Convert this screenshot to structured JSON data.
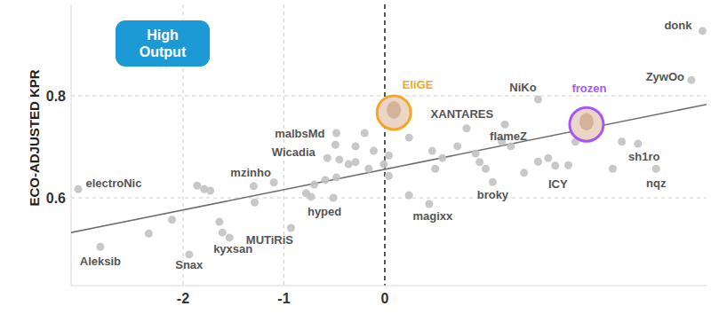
{
  "chart_data": {
    "type": "scatter",
    "ylabel": "ECO-ADJUSTED KPR",
    "annotation": "High Output",
    "marker": "circle",
    "grid": true,
    "xlim": [
      -3.11,
      3.19
    ],
    "ylim": [
      0.428,
      0.979
    ],
    "xticks": [
      -2,
      -1,
      0
    ],
    "yticks": [
      0.6,
      0.8
    ],
    "color": "#c2c2c2",
    "x": [
      0.09,
      2.0,
      3.15,
      3.04,
      1.52,
      0.81,
      1.19,
      2.51,
      2.69,
      1.69,
      1.07,
      0.44,
      -0.73,
      -0.93,
      -1.54,
      -1.94,
      -2.82,
      -3.04,
      -1.1,
      -0.57,
      -0.49,
      -1.86,
      -1.79,
      -1.73,
      -2.11,
      -2.34,
      -1.64,
      -1.61,
      -1.29,
      -1.3,
      -0.78,
      -0.7,
      -0.59,
      -0.51,
      -0.48,
      -0.45,
      -0.36,
      -0.29,
      -0.2,
      -0.48,
      -0.29,
      -0.11,
      -0.16,
      -0.01,
      0.04,
      0.04,
      0.24,
      0.47,
      0.5,
      0.57,
      0.72,
      0.9,
      0.94,
      1.0,
      1.16,
      1.25,
      1.38,
      1.52,
      1.62,
      1.82,
      1.89,
      2.09,
      2.26,
      0.24,
      2.35
    ],
    "values": [
      0.767,
      0.744,
      0.927,
      0.831,
      0.793,
      0.736,
      0.744,
      0.706,
      0.657,
      0.663,
      0.631,
      0.588,
      0.602,
      0.541,
      0.522,
      0.489,
      0.504,
      0.617,
      0.63,
      0.678,
      0.704,
      0.624,
      0.617,
      0.614,
      0.557,
      0.53,
      0.553,
      0.532,
      0.591,
      0.623,
      0.609,
      0.626,
      0.635,
      0.6,
      0.64,
      0.675,
      0.666,
      0.67,
      0.727,
      0.727,
      0.701,
      0.692,
      0.657,
      0.666,
      0.683,
      0.643,
      0.605,
      0.692,
      0.657,
      0.678,
      0.701,
      0.687,
      0.67,
      0.657,
      0.71,
      0.701,
      0.649,
      0.671,
      0.678,
      0.664,
      0.71,
      0.727,
      0.657,
      0.718,
      0.71
    ],
    "point_labels": [
      "EliGE",
      "frozen",
      "donk",
      "ZywOo",
      "NiKo",
      "XANTARES",
      "flameZ",
      "sh1ro",
      "nqz",
      "ICY",
      "broky",
      "magixx",
      "hyped",
      "MUTiRiS",
      "kyxsan",
      "Snax",
      "Aleksib",
      "electroNic",
      "mzinho",
      "Wicadia",
      "malbsMd",
      null,
      null,
      null,
      null,
      null,
      null,
      null,
      null,
      null,
      null,
      null,
      null,
      null,
      null,
      null,
      null,
      null,
      null,
      null,
      null,
      null,
      null,
      null,
      null,
      null,
      null,
      null,
      null,
      null,
      null,
      null,
      null,
      null,
      null,
      null,
      null,
      null,
      null,
      null,
      null,
      null,
      null,
      null,
      null
    ],
    "colors": [
      "#f5a623",
      "#a855f7",
      "#c2c2c2",
      "#c2c2c2",
      "#c2c2c2",
      "#c2c2c2",
      "#c2c2c2",
      "#c2c2c2",
      "#c2c2c2",
      "#c2c2c2",
      "#c2c2c2",
      "#c2c2c2",
      "#c2c2c2",
      "#c2c2c2",
      "#c2c2c2",
      "#c2c2c2",
      "#c2c2c2",
      "#c2c2c2",
      "#c2c2c2",
      "#c2c2c2",
      "#c2c2c2",
      "#c2c2c2",
      "#c2c2c2",
      "#c2c2c2",
      "#c2c2c2",
      "#c2c2c2",
      "#c2c2c2",
      "#c2c2c2",
      "#c2c2c2",
      "#c2c2c2",
      "#c2c2c2",
      "#c2c2c2",
      "#c2c2c2",
      "#c2c2c2",
      "#c2c2c2",
      "#c2c2c2",
      "#c2c2c2",
      "#c2c2c2",
      "#c2c2c2",
      "#c2c2c2",
      "#c2c2c2",
      "#c2c2c2",
      "#c2c2c2",
      "#c2c2c2",
      "#c2c2c2",
      "#c2c2c2",
      "#c2c2c2",
      "#c2c2c2",
      "#c2c2c2",
      "#c2c2c2",
      "#c2c2c2",
      "#c2c2c2",
      "#c2c2c2",
      "#c2c2c2",
      "#c2c2c2",
      "#c2c2c2",
      "#c2c2c2",
      "#c2c2c2",
      "#c2c2c2",
      "#c2c2c2",
      "#c2c2c2",
      "#c2c2c2",
      "#c2c2c2",
      "#c2c2c2",
      "#c2c2c2"
    ],
    "trend_line": {
      "x": [
        -3.11,
        3.19
      ],
      "values": [
        0.532,
        0.783
      ]
    }
  }
}
